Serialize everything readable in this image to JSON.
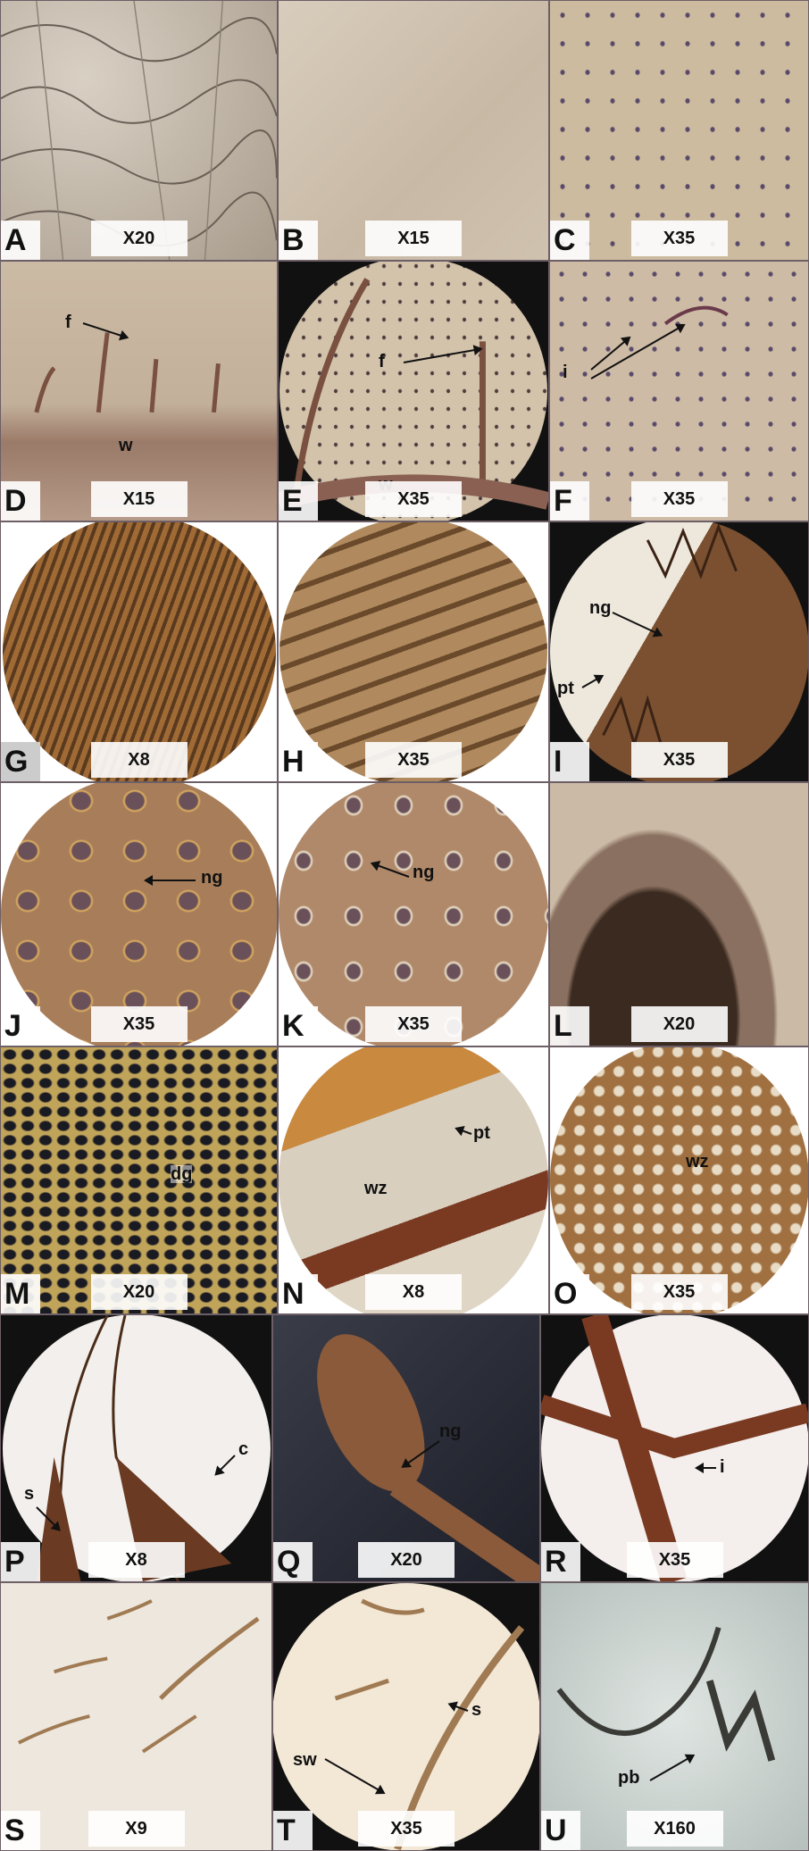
{
  "panels": [
    {
      "letter": "A",
      "mag": "X20",
      "labels": []
    },
    {
      "letter": "B",
      "mag": "X15",
      "labels": []
    },
    {
      "letter": "C",
      "mag": "X35",
      "labels": []
    },
    {
      "letter": "D",
      "mag": "X15",
      "labels": [
        "f",
        "w"
      ]
    },
    {
      "letter": "E",
      "mag": "X35",
      "labels": [
        "f",
        "w"
      ]
    },
    {
      "letter": "F",
      "mag": "X35",
      "labels": [
        "i"
      ]
    },
    {
      "letter": "G",
      "mag": "X8",
      "labels": []
    },
    {
      "letter": "H",
      "mag": "X35",
      "labels": []
    },
    {
      "letter": "I",
      "mag": "X35",
      "labels": [
        "ng",
        "pt"
      ]
    },
    {
      "letter": "J",
      "mag": "X35",
      "labels": [
        "ng"
      ]
    },
    {
      "letter": "K",
      "mag": "X35",
      "labels": [
        "ng"
      ]
    },
    {
      "letter": "L",
      "mag": "X20",
      "labels": []
    },
    {
      "letter": "M",
      "mag": "X20",
      "labels": [
        "dg"
      ]
    },
    {
      "letter": "N",
      "mag": "X8",
      "labels": [
        "pt",
        "wz"
      ]
    },
    {
      "letter": "O",
      "mag": "X35",
      "labels": [
        "wz"
      ]
    },
    {
      "letter": "P",
      "mag": "X8",
      "labels": [
        "s",
        "c"
      ]
    },
    {
      "letter": "Q",
      "mag": "X20",
      "labels": [
        "ng"
      ]
    },
    {
      "letter": "R",
      "mag": "X35",
      "labels": [
        "i"
      ]
    },
    {
      "letter": "S",
      "mag": "X9",
      "labels": []
    },
    {
      "letter": "T",
      "mag": "X35",
      "labels": [
        "sw",
        "s"
      ]
    },
    {
      "letter": "U",
      "mag": "X160",
      "labels": [
        "pb"
      ]
    }
  ],
  "colors": {
    "paper_tan": "#c9b9a4",
    "lamina_brown": "#8a6444",
    "dark_brown": "#4a2c18",
    "gland_dark": "#5a4a6a",
    "background_white": "#ffffff",
    "light_field": "#eee7dd"
  }
}
